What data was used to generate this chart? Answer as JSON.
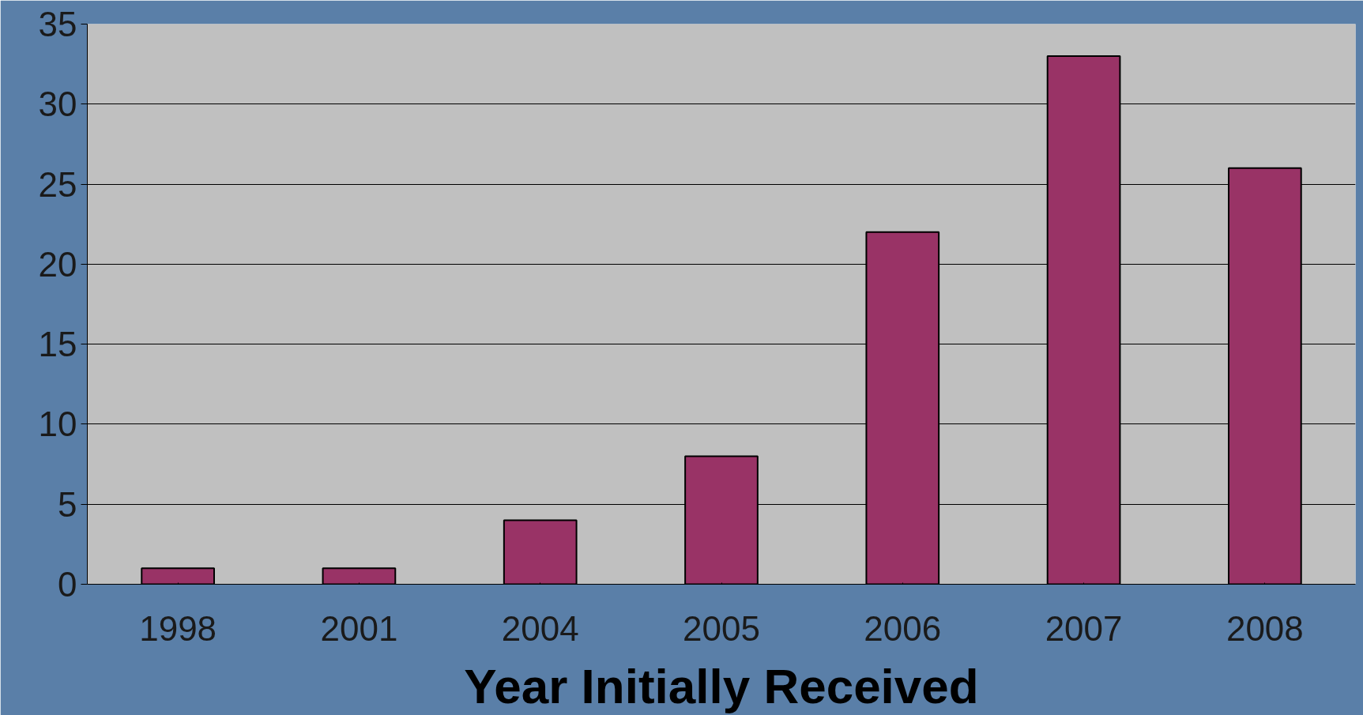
{
  "chart_data": {
    "type": "bar",
    "xlabel": "Year Initially Received",
    "categories": [
      "1998",
      "2001",
      "2004",
      "2005",
      "2006",
      "2007",
      "2008"
    ],
    "values": [
      1,
      1,
      4,
      8,
      22,
      33,
      26
    ],
    "color": "#993366",
    "ylim": [
      0,
      35
    ],
    "yticks": [
      0,
      5,
      10,
      15,
      20,
      25,
      30,
      35
    ],
    "grid": "y"
  }
}
